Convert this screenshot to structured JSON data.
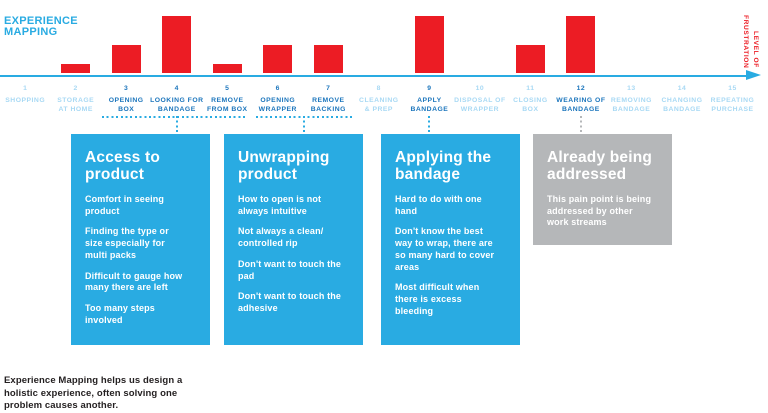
{
  "header": {
    "title": "EXPERIENCE\nMAPPING",
    "axis_label": "LEVEL OF\nFRUSTRATION"
  },
  "footer": {
    "caption": "Experience Mapping helps us design a\nholistic experience, often solving one\nproblem causes another."
  },
  "colors": {
    "accent_cyan": "#29ABE2",
    "active_step_blue": "#1B75BC",
    "inactive_step_blue": "#A8D9F4",
    "bar_red": "#EC1C24",
    "addressed_gray": "#B5B7B9",
    "caption_dark": "#231F20"
  },
  "steps": [
    {
      "num": "1",
      "label": "SHOPPING",
      "active": false,
      "frustration": 0
    },
    {
      "num": "2",
      "label": "STORAGE\nAT HOME",
      "active": false,
      "frustration": 1
    },
    {
      "num": "3",
      "label": "OPENING\nBOX",
      "active": true,
      "frustration": 3
    },
    {
      "num": "4",
      "label": "LOOKING FOR\nBANDAGE",
      "active": true,
      "frustration": 6
    },
    {
      "num": "5",
      "label": "REMOVE\nFROM BOX",
      "active": true,
      "frustration": 1
    },
    {
      "num": "6",
      "label": "OPENING\nWRAPPER",
      "active": true,
      "frustration": 3
    },
    {
      "num": "7",
      "label": "REMOVE\nBACKING",
      "active": true,
      "frustration": 3
    },
    {
      "num": "8",
      "label": "CLEANING\n& PREP",
      "active": false,
      "frustration": 0
    },
    {
      "num": "9",
      "label": "APPLY\nBANDAGE",
      "active": true,
      "frustration": 6
    },
    {
      "num": "10",
      "label": "DISPOSAL OF\nWRAPPER",
      "active": false,
      "frustration": 0
    },
    {
      "num": "11",
      "label": "CLOSING\nBOX",
      "active": false,
      "frustration": 3
    },
    {
      "num": "12",
      "label": "WEARING OF\nBANDAGE",
      "active": true,
      "frustration": 6
    },
    {
      "num": "13",
      "label": "REMOVING\nBANDAGE",
      "active": false,
      "frustration": 0
    },
    {
      "num": "14",
      "label": "CHANGING\nBANDAGE",
      "active": false,
      "frustration": 0
    },
    {
      "num": "15",
      "label": "REPEATING\nPURCHASE",
      "active": false,
      "frustration": 0
    }
  ],
  "callouts": [
    {
      "title": "Access to\nproduct",
      "variant": "blue",
      "items": [
        "Comfort in seeing\nproduct",
        "Finding the type or\nsize especially for\nmulti packs",
        "Difficult to gauge how\nmany there are left",
        "Too many steps\ninvolved"
      ]
    },
    {
      "title": "Unwrapping\nproduct",
      "variant": "blue",
      "items": [
        "How to open is not\nalways intuitive",
        "Not always a clean/\ncontrolled rip",
        "Don't want to touch the\npad",
        "Don't want to touch the\nadhesive"
      ]
    },
    {
      "title": "Applying the\nbandage",
      "variant": "blue",
      "items": [
        "Hard to do with one\nhand",
        "Don't know the best\nway to wrap, there are\nso many hard to cover\nareas",
        "Most difficult when\nthere is excess\nbleeding"
      ]
    },
    {
      "title": "Already being\naddressed",
      "variant": "gray",
      "items": [
        "This pain point is being\naddressed by other\nwork streams"
      ]
    }
  ],
  "chart_data": {
    "type": "bar",
    "title": "Experience Mapping",
    "ylabel": "Level of Frustration",
    "xlabel": "",
    "categories": [
      "1 Shopping",
      "2 Storage at Home",
      "3 Opening Box",
      "4 Looking for Bandage",
      "5 Remove from Box",
      "6 Opening Wrapper",
      "7 Remove Backing",
      "8 Cleaning & Prep",
      "9 Apply Bandage",
      "10 Disposal of Wrapper",
      "11 Closing Box",
      "12 Wearing of Bandage",
      "13 Removing Bandage",
      "14 Changing Bandage",
      "15 Repeating Purchase"
    ],
    "values": [
      0,
      1,
      3,
      6,
      1,
      3,
      3,
      0,
      6,
      0,
      3,
      6,
      0,
      0,
      0
    ],
    "ylim": [
      0,
      6
    ],
    "grid": false,
    "legend_position": "none",
    "bar_color": "#EC1C24",
    "highlighted_steps": [
      "3",
      "4",
      "5",
      "6",
      "7",
      "9",
      "12"
    ]
  }
}
